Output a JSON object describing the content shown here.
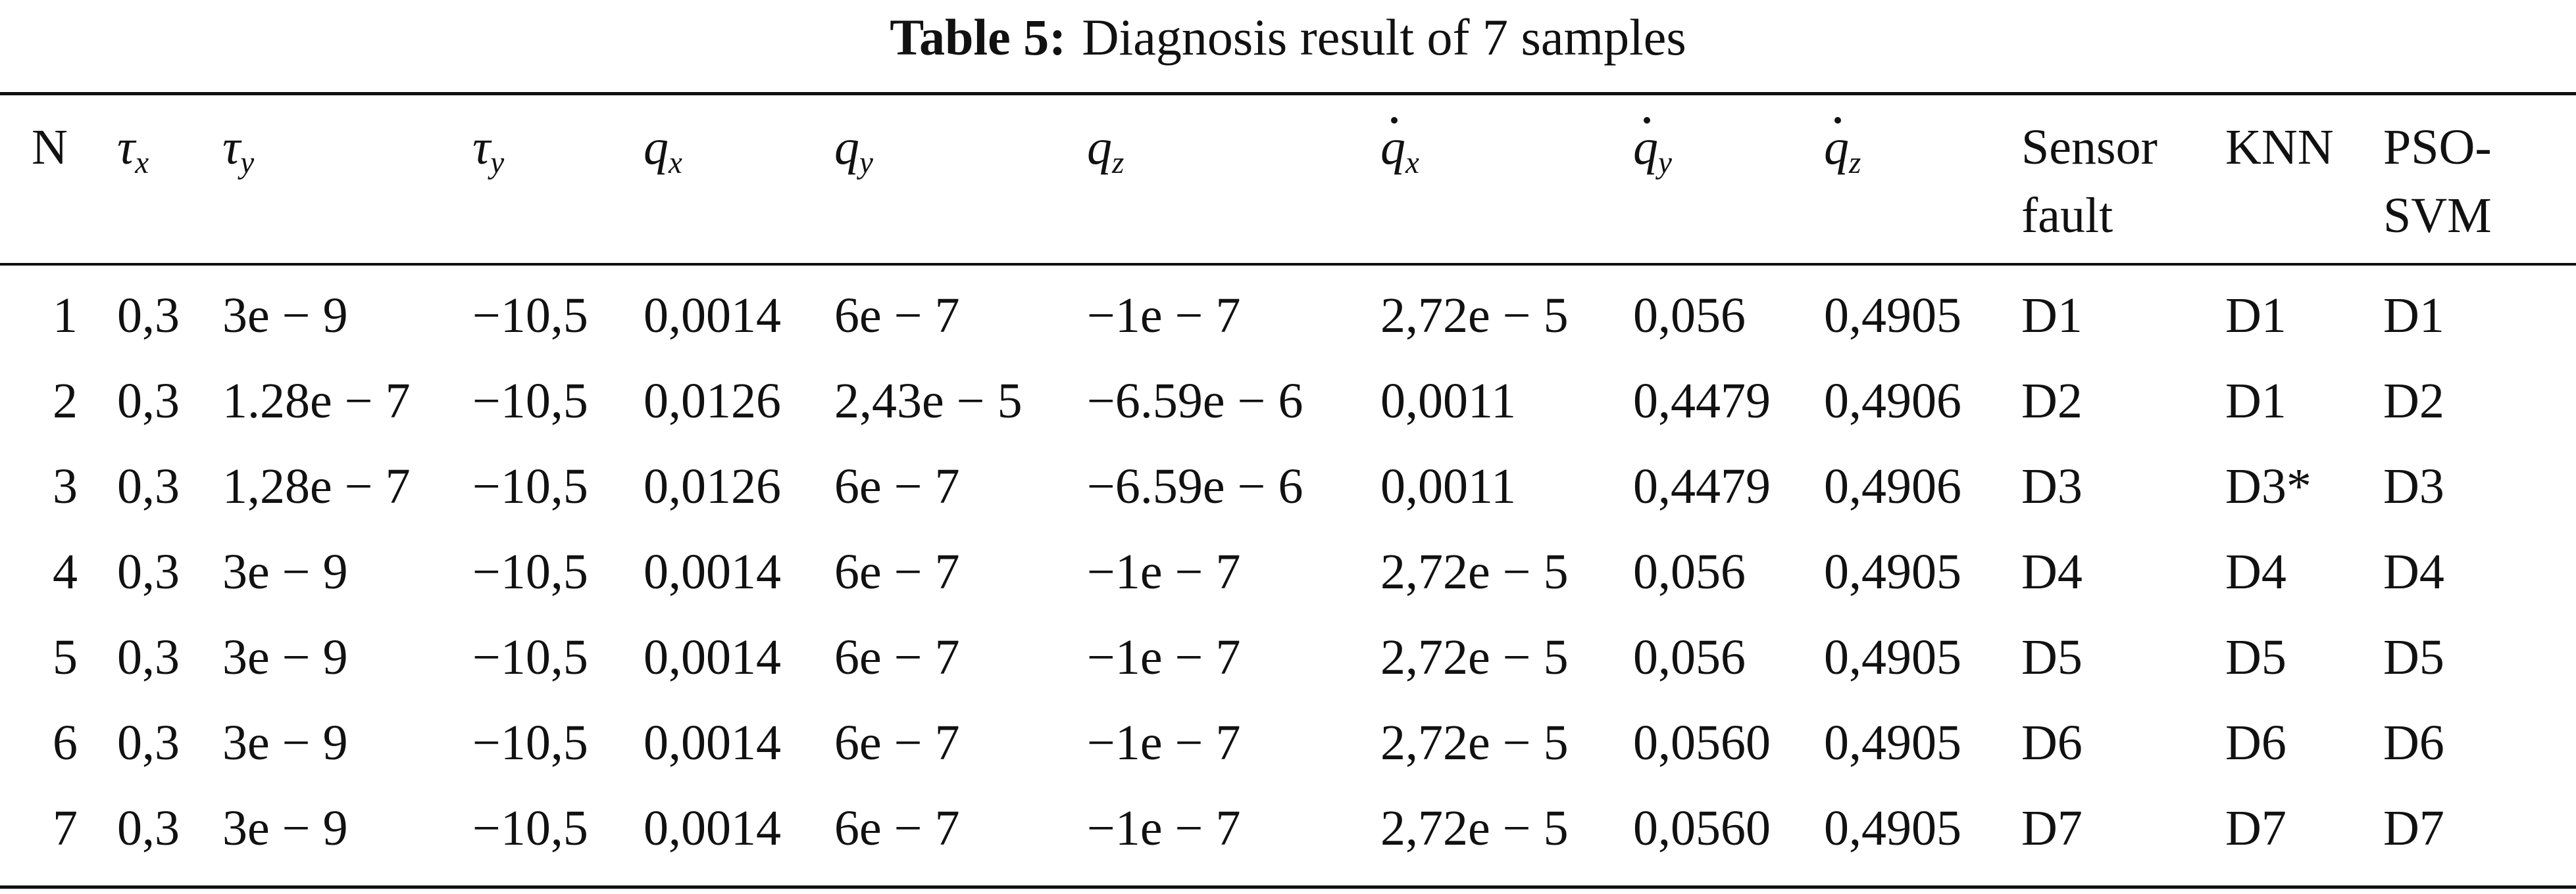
{
  "caption": {
    "label": "Table 5:",
    "title": "Diagnosis result of 7 samples"
  },
  "headers": {
    "n": "N",
    "tau_x": "τ",
    "tau_x_sub": "x",
    "tau_y": "τ",
    "tau_y_sub": "y",
    "tau_y2": "τ",
    "tau_y2_sub": "y",
    "q_x": "q",
    "q_x_sub": "x",
    "q_y": "q",
    "q_y_sub": "y",
    "q_z": "q",
    "q_z_sub": "z",
    "qdot_x": "q",
    "qdot_x_sub": "x",
    "qdot_y": "q",
    "qdot_y_sub": "y",
    "qdot_z": "q",
    "qdot_z_sub": "z",
    "sensor_fault_line1": "Sensor",
    "sensor_fault_line2": "fault",
    "knn": "KNN",
    "pso_svm_line1": "PSO-",
    "pso_svm_line2": "SVM"
  },
  "rows": [
    [
      "1",
      "0,3",
      "3e − 9",
      "−10,5",
      "0,0014",
      "6e − 7",
      "−1e − 7",
      "2,72e − 5",
      "0,056",
      "0,4905",
      "D1",
      "D1",
      "D1"
    ],
    [
      "2",
      "0,3",
      "1.28e − 7",
      "−10,5",
      "0,0126",
      "2,43e − 5",
      "−6.59e − 6",
      "0,0011",
      "0,4479",
      "0,4906",
      "D2",
      "D1",
      "D2"
    ],
    [
      "3",
      "0,3",
      "1,28e − 7",
      "−10,5",
      "0,0126",
      "6e − 7",
      "−6.59e − 6",
      "0,0011",
      "0,4479",
      "0,4906",
      "D3",
      "D3*",
      "D3"
    ],
    [
      "4",
      "0,3",
      "3e − 9",
      "−10,5",
      "0,0014",
      "6e − 7",
      "−1e − 7",
      "2,72e − 5",
      "0,056",
      "0,4905",
      "D4",
      "D4",
      "D4"
    ],
    [
      "5",
      "0,3",
      "3e − 9",
      "−10,5",
      "0,0014",
      "6e − 7",
      "−1e − 7",
      "2,72e − 5",
      "0,056",
      "0,4905",
      "D5",
      "D5",
      "D5"
    ],
    [
      "6",
      "0,3",
      "3e − 9",
      "−10,5",
      "0,0014",
      "6e − 7",
      "−1e − 7",
      "2,72e − 5",
      "0,0560",
      "0,4905",
      "D6",
      "D6",
      "D6"
    ],
    [
      "7",
      "0,3",
      "3e − 9",
      "−10,5",
      "0,0014",
      "6e − 7",
      "−1e − 7",
      "2,72e − 5",
      "0,0560",
      "0,4905",
      "D7",
      "D7",
      "D7"
    ]
  ]
}
